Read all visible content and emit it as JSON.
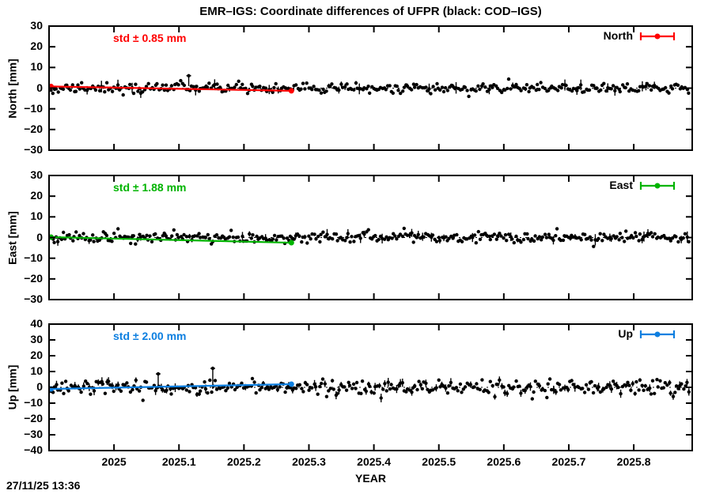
{
  "title": "EMR–IGS: Coordinate differences of UFPR (black: COD–IGS)",
  "timestamp": "27/11/25 13:36",
  "chart_data": {
    "type": "scatter",
    "black_series_label": "COD–IGS",
    "colored_series_label": "EMR–IGS",
    "x_axis": {
      "label": "YEAR",
      "lim": [
        2024.9,
        2025.89
      ],
      "ticks": [
        2025.0,
        2025.1,
        2025.2,
        2025.3,
        2025.4,
        2025.5,
        2025.6,
        2025.7,
        2025.8
      ],
      "tick_labels": [
        "2025",
        "2025.1",
        "2025.2",
        "2025.3",
        "2025.4",
        "2025.5",
        "2025.6",
        "2025.7",
        "2025.8"
      ]
    },
    "panels": [
      {
        "name": "North",
        "ylabel": "North [mm]",
        "ylim": [
          -30,
          30
        ],
        "yticks": [
          30,
          20,
          10,
          0,
          -10,
          -20,
          -30
        ],
        "ytick_labels": [
          "30",
          "20",
          "10",
          "0",
          "−10",
          "−20",
          "−30"
        ],
        "std_label": "std ± 0.85 mm",
        "std_mm": 0.85,
        "color": "#ff0000",
        "legend_label": "North",
        "trend": {
          "x": [
            2024.903,
            2025.273
          ],
          "y": [
            0.8,
            -1.3
          ]
        },
        "scatter": {
          "n": 355,
          "std_mm": 1.15,
          "seed": 11,
          "errorbar_prob": 0.1
        },
        "spikes": [
          {
            "x": 2025.115,
            "y": 6.0,
            "base": 1.0
          }
        ]
      },
      {
        "name": "East",
        "ylabel": "East [mm]",
        "ylim": [
          -30,
          30
        ],
        "yticks": [
          30,
          20,
          10,
          0,
          -10,
          -20,
          -30
        ],
        "ytick_labels": [
          "30",
          "20",
          "10",
          "0",
          "−10",
          "−20",
          "−30"
        ],
        "std_label": "std ± 1.88 mm",
        "std_mm": 1.88,
        "color": "#00b400",
        "legend_label": "East",
        "trend": {
          "x": [
            2024.903,
            2025.273
          ],
          "y": [
            0.2,
            -2.5
          ]
        },
        "scatter": {
          "n": 355,
          "std_mm": 1.3,
          "seed": 22,
          "errorbar_prob": 0.1
        },
        "spikes": []
      },
      {
        "name": "Up",
        "ylabel": "Up [mm]",
        "ylim": [
          -40,
          40
        ],
        "yticks": [
          40,
          30,
          20,
          10,
          0,
          -10,
          -20,
          -30,
          -40
        ],
        "ytick_labels": [
          "40",
          "30",
          "20",
          "10",
          "0",
          "−10",
          "−20",
          "−30",
          "−40"
        ],
        "std_label": "std ± 2.00 mm",
        "std_mm": 2.0,
        "color": "#0d7fe0",
        "legend_label": "Up",
        "trend": {
          "x": [
            2024.903,
            2025.273
          ],
          "y": [
            -1.0,
            2.0
          ]
        },
        "scatter": {
          "n": 355,
          "std_mm": 2.3,
          "seed": 33,
          "errorbar_prob": 0.35
        },
        "spikes": [
          {
            "x": 2025.068,
            "y": 8.5,
            "base": -1.0
          },
          {
            "x": 2025.152,
            "y": 12.0,
            "base": -1.0
          }
        ]
      }
    ]
  }
}
